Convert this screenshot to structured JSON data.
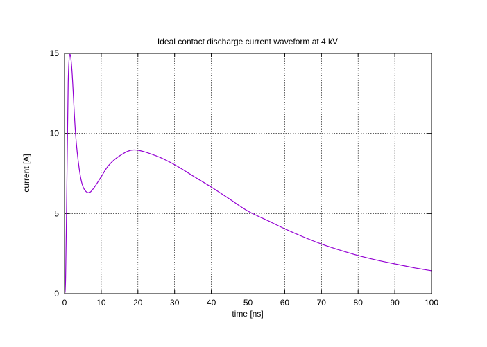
{
  "chart_data": {
    "type": "line",
    "title": "Ideal contact discharge current waveform at 4 kV",
    "xlabel": "time [ns]",
    "ylabel": "current [A]",
    "xlim": [
      0,
      100
    ],
    "ylim": [
      0,
      15
    ],
    "xticks": [
      0,
      10,
      20,
      30,
      40,
      50,
      60,
      70,
      80,
      90,
      100
    ],
    "yticks": [
      0,
      5,
      10,
      15
    ],
    "grid": true,
    "series_color": "#9400d3",
    "series": [
      {
        "x": [
          0,
          0.3,
          0.7,
          1.0,
          1.4,
          2,
          3,
          4,
          5,
          6.5,
          8,
          10,
          12,
          15,
          19,
          25,
          30,
          35,
          40,
          45,
          50,
          55,
          60,
          65,
          70,
          75,
          80,
          85,
          90,
          95,
          100
        ],
        "y": [
          0,
          1.0,
          8.0,
          13.2,
          14.9,
          14.0,
          10.0,
          7.8,
          6.7,
          6.3,
          6.6,
          7.3,
          8.0,
          8.6,
          8.97,
          8.6,
          8.05,
          7.35,
          6.65,
          5.9,
          5.15,
          4.6,
          4.05,
          3.55,
          3.1,
          2.72,
          2.38,
          2.1,
          1.86,
          1.63,
          1.43
        ]
      }
    ]
  }
}
